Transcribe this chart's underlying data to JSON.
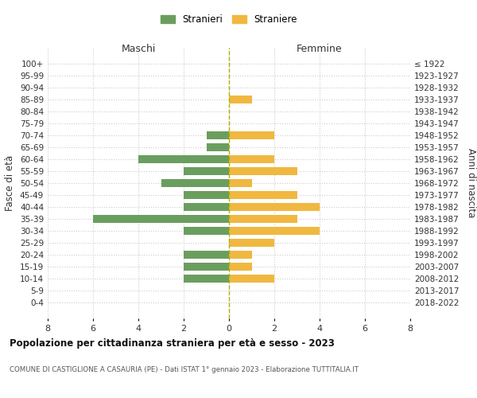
{
  "age_groups": [
    "100+",
    "95-99",
    "90-94",
    "85-89",
    "80-84",
    "75-79",
    "70-74",
    "65-69",
    "60-64",
    "55-59",
    "50-54",
    "45-49",
    "40-44",
    "35-39",
    "30-34",
    "25-29",
    "20-24",
    "15-19",
    "10-14",
    "5-9",
    "0-4"
  ],
  "birth_years": [
    "≤ 1922",
    "1923-1927",
    "1928-1932",
    "1933-1937",
    "1938-1942",
    "1943-1947",
    "1948-1952",
    "1953-1957",
    "1958-1962",
    "1963-1967",
    "1968-1972",
    "1973-1977",
    "1978-1982",
    "1983-1987",
    "1988-1992",
    "1993-1997",
    "1998-2002",
    "2003-2007",
    "2008-2012",
    "2013-2017",
    "2018-2022"
  ],
  "maschi": [
    0,
    0,
    0,
    0,
    0,
    0,
    1,
    1,
    4,
    2,
    3,
    2,
    2,
    6,
    2,
    0,
    2,
    2,
    2,
    0,
    0
  ],
  "femmine": [
    0,
    0,
    0,
    1,
    0,
    0,
    2,
    0,
    2,
    3,
    1,
    3,
    4,
    3,
    4,
    2,
    1,
    1,
    2,
    0,
    0
  ],
  "color_maschi": "#6a9e5e",
  "color_femmine": "#f0b840",
  "background_color": "#ffffff",
  "grid_color": "#cccccc",
  "title": "Popolazione per cittadinanza straniera per età e sesso - 2023",
  "subtitle": "COMUNE DI CASTIGLIONE A CASAURIA (PE) - Dati ISTAT 1° gennaio 2023 - Elaborazione TUTTITALIA.IT",
  "xlabel_left": "Maschi",
  "xlabel_right": "Femmine",
  "ylabel_left": "Fasce di età",
  "ylabel_right": "Anni di nascita",
  "legend_maschi": "Stranieri",
  "legend_femmine": "Straniere",
  "xlim": 8,
  "xticks": [
    -8,
    -6,
    -4,
    -2,
    0,
    2,
    4,
    6,
    8
  ],
  "xticklabels": [
    "8",
    "6",
    "4",
    "2",
    "0",
    "2",
    "4",
    "6",
    "8"
  ]
}
